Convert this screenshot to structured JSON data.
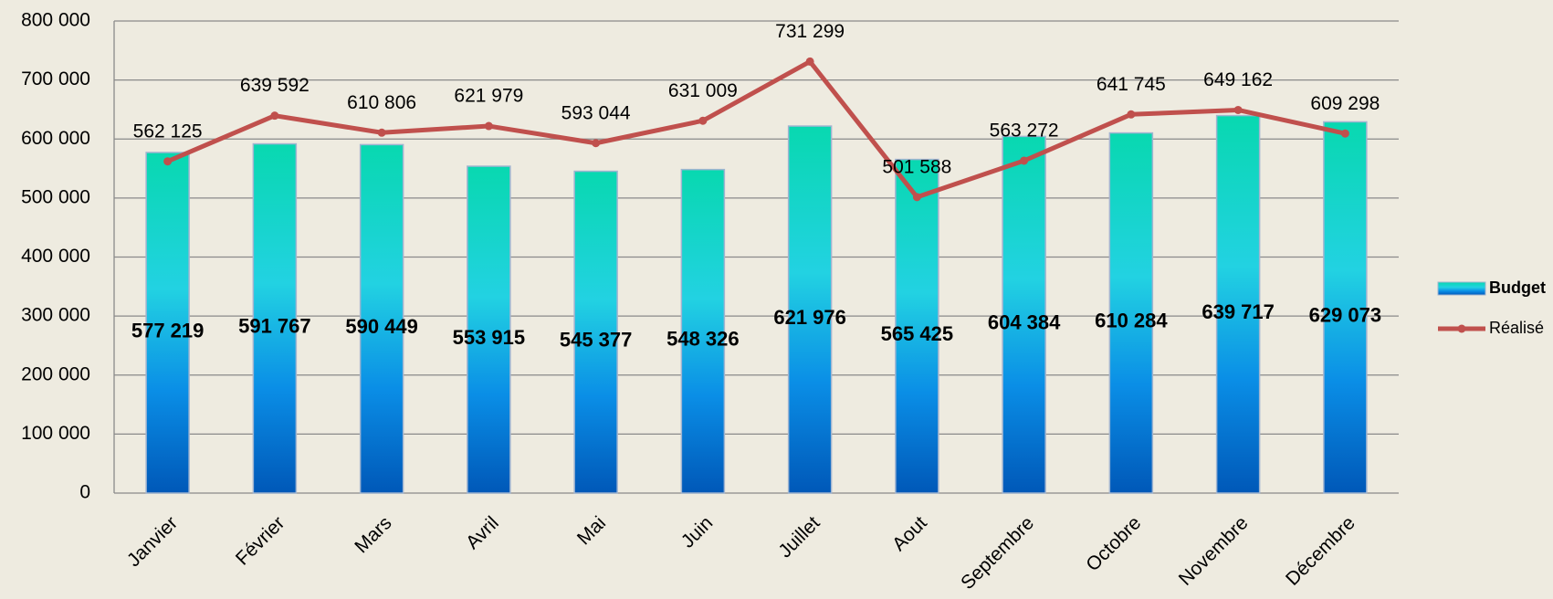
{
  "chart_data": {
    "type": "bar",
    "categories": [
      "Janvier",
      "Février",
      "Mars",
      "Avril",
      "Mai",
      "Juin",
      "Juillet",
      "Aout",
      "Septembre",
      "Octobre",
      "Novembre",
      "Décembre"
    ],
    "series": [
      {
        "name": "Budget",
        "type": "bar",
        "color": "#1ab8e0",
        "values": [
          577219,
          591767,
          590449,
          553915,
          545377,
          548326,
          621976,
          565425,
          604384,
          610284,
          639717,
          629073
        ],
        "value_labels": [
          "577 219",
          "591 767",
          "590 449",
          "553 915",
          "545 377",
          "548 326",
          "621 976",
          "565 425",
          "604 384",
          "610 284",
          "639 717",
          "629 073"
        ]
      },
      {
        "name": "Réalisé",
        "type": "line",
        "color": "#c0504d",
        "values": [
          562125,
          639592,
          610806,
          621979,
          593044,
          631009,
          731299,
          501588,
          563272,
          641745,
          649162,
          609298
        ],
        "value_labels": [
          "562 125",
          "639 592",
          "610 806",
          "621 979",
          "593 044",
          "631 009",
          "731 299",
          "501 588",
          "563 272",
          "641 745",
          "649 162",
          "609 298"
        ]
      }
    ],
    "ylim": [
      0,
      800000
    ],
    "yticks": [
      0,
      {
        "value": 100000,
        "label": "100 000"
      },
      {
        "value": 200000,
        "label": "200 000"
      },
      {
        "value": 300000,
        "label": "300 000"
      },
      {
        "value": 400000,
        "label": "400 000"
      },
      {
        "value": 500000,
        "label": "500 000"
      },
      {
        "value": 600000,
        "label": "600 000"
      },
      {
        "value": 700000,
        "label": "700 000"
      },
      {
        "value": 800000,
        "label": "800 000"
      }
    ],
    "grid": true,
    "legend": "right"
  }
}
